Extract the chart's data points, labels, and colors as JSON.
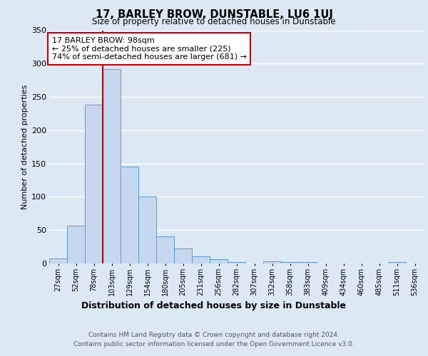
{
  "title": "17, BARLEY BROW, DUNSTABLE, LU6 1UJ",
  "subtitle": "Size of property relative to detached houses in Dunstable",
  "xlabel": "Distribution of detached houses by size in Dunstable",
  "ylabel": "Number of detached properties",
  "bar_labels": [
    "27sqm",
    "52sqm",
    "78sqm",
    "103sqm",
    "129sqm",
    "154sqm",
    "180sqm",
    "205sqm",
    "231sqm",
    "256sqm",
    "282sqm",
    "307sqm",
    "332sqm",
    "358sqm",
    "383sqm",
    "409sqm",
    "434sqm",
    "460sqm",
    "485sqm",
    "511sqm",
    "536sqm"
  ],
  "bar_values": [
    8,
    57,
    238,
    292,
    145,
    100,
    41,
    22,
    11,
    6,
    2,
    0,
    3,
    2,
    2,
    0,
    0,
    0,
    0,
    2,
    0
  ],
  "bar_color": "#c5d8f0",
  "bar_edge_color": "#5b9bd5",
  "vline_x": 3,
  "vline_color": "#cc0000",
  "annotation_text": "17 BARLEY BROW: 98sqm\n← 25% of detached houses are smaller (225)\n74% of semi-detached houses are larger (681) →",
  "annotation_box_color": "#ffffff",
  "annotation_box_edge": "#cc0000",
  "ylim": [
    0,
    350
  ],
  "yticks": [
    0,
    50,
    100,
    150,
    200,
    250,
    300,
    350
  ],
  "footer_line1": "Contains HM Land Registry data © Crown copyright and database right 2024.",
  "footer_line2": "Contains public sector information licensed under the Open Government Licence v3.0.",
  "background_color": "#dce9f5",
  "plot_background": "#dce9f5",
  "grid_color": "#ffffff"
}
